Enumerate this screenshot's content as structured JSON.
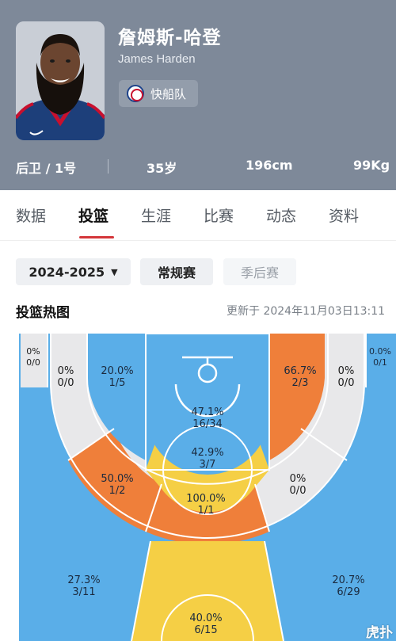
{
  "player": {
    "name_cn": "詹姆斯-哈登",
    "name_en": "James Harden",
    "team": "快船队",
    "position_number": "后卫 / 1号",
    "age": "35岁",
    "height": "196cm",
    "weight": "99Kg"
  },
  "tabs": [
    {
      "label": "数据",
      "active": false
    },
    {
      "label": "投篮",
      "active": true
    },
    {
      "label": "生涯",
      "active": false
    },
    {
      "label": "比赛",
      "active": false
    },
    {
      "label": "动态",
      "active": false
    },
    {
      "label": "资料",
      "active": false
    }
  ],
  "filters": {
    "season": "2024-2025",
    "regular": "常规赛",
    "playoff": "季后赛"
  },
  "section": {
    "title": "投篮热图",
    "updated": "更新于 2024年11月03日13:11"
  },
  "zones": {
    "left_corner": {
      "pct": "0%",
      "made": "0/0"
    },
    "left_baseline_mid": {
      "pct": "0%",
      "made": "0/0"
    },
    "left_paint_side": {
      "pct": "20.0%",
      "made": "1/5"
    },
    "restricted": {
      "pct": "47.1%",
      "made": "16/34"
    },
    "right_paint_side": {
      "pct": "66.7%",
      "made": "2/3"
    },
    "right_baseline_mid": {
      "pct": "0%",
      "made": "0/0"
    },
    "right_corner": {
      "pct": "0.0%",
      "made": "0/1"
    },
    "paint_top": {
      "pct": "42.9%",
      "made": "3/7"
    },
    "left_elbow": {
      "pct": "50.0%",
      "made": "1/2"
    },
    "right_elbow": {
      "pct": "0%",
      "made": "0/0"
    },
    "top_key": {
      "pct": "100.0%",
      "made": "1/1"
    },
    "left_wing_three": {
      "pct": "27.3%",
      "made": "3/11"
    },
    "right_wing_three": {
      "pct": "20.7%",
      "made": "6/29"
    },
    "top_three": {
      "pct": "40.0%",
      "made": "6/15"
    }
  },
  "colors": {
    "header_bg": "#7e8999",
    "accent": "#d4363a",
    "zone_blue": "#5aaee8",
    "zone_orange": "#ef7f3a",
    "zone_yellow": "#f5cf45",
    "zone_gray": "#e8e8ea"
  },
  "watermark": "虎扑"
}
